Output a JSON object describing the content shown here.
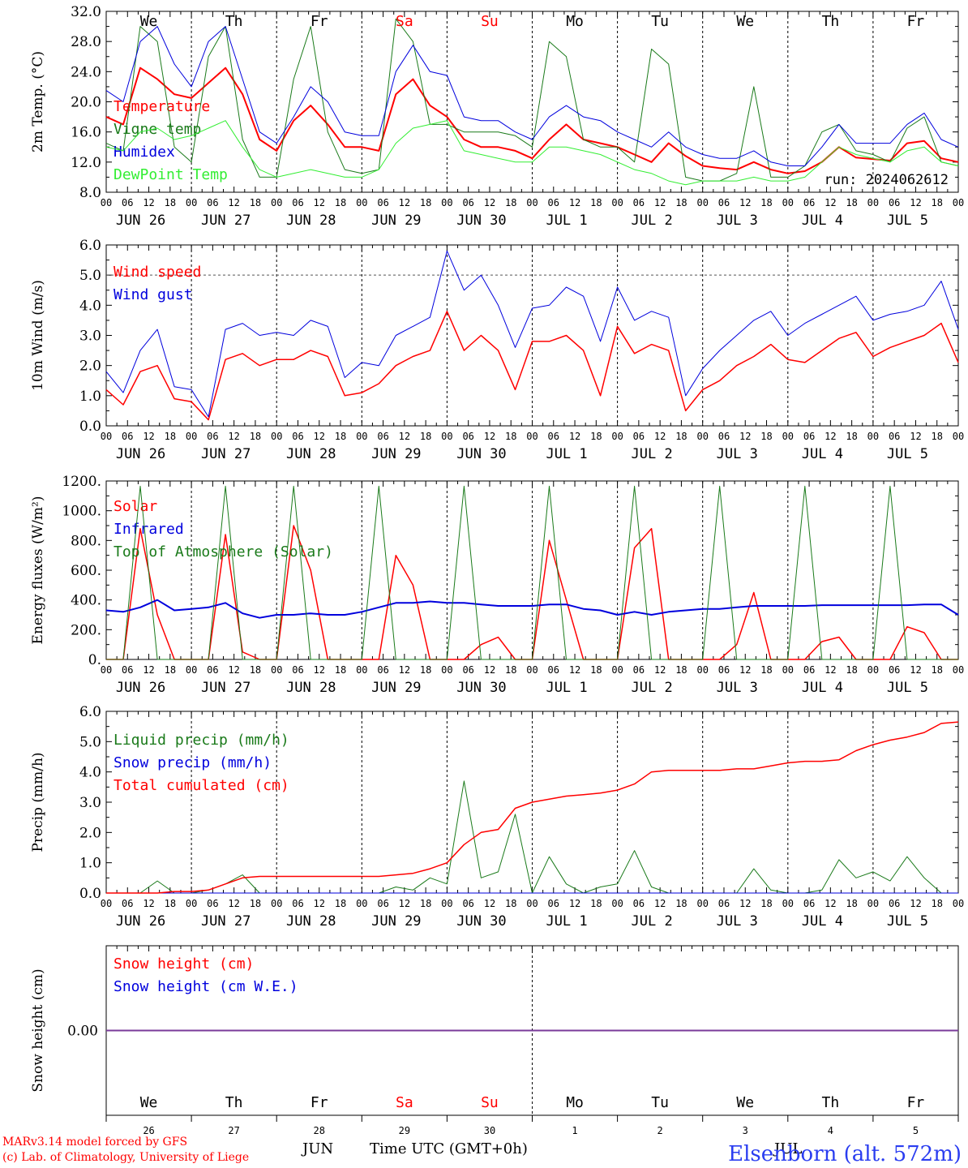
{
  "days": [
    {
      "dow": "We",
      "date": "JUN 26",
      "num": "26",
      "color": "#000000"
    },
    {
      "dow": "Th",
      "date": "JUN 27",
      "num": "27",
      "color": "#000000"
    },
    {
      "dow": "Fr",
      "date": "JUN 28",
      "num": "28",
      "color": "#000000"
    },
    {
      "dow": "Sa",
      "date": "JUN 29",
      "num": "29",
      "color": "#ff0000"
    },
    {
      "dow": "Su",
      "date": "JUN 30",
      "num": "30",
      "color": "#ff0000"
    },
    {
      "dow": "Mo",
      "date": "JUL  1",
      "num": "1",
      "color": "#000000"
    },
    {
      "dow": "Tu",
      "date": "JUL  2",
      "num": "2",
      "color": "#000000"
    },
    {
      "dow": "We",
      "date": "JUL  3",
      "num": "3",
      "color": "#000000"
    },
    {
      "dow": "Th",
      "date": "JUL  4",
      "num": "4",
      "color": "#000000"
    },
    {
      "dow": "Fr",
      "date": "JUL  5",
      "num": "5",
      "color": "#000000"
    }
  ],
  "hour_ticks": [
    "00",
    "06",
    "12",
    "18"
  ],
  "run_label": "run: 2024062612",
  "footer": {
    "credit_line1": "MARv3.14 model forced by GFS",
    "credit_line2": "(c) Lab. of Climatology, University of Liege",
    "month_left": "JUN",
    "month_right": "JUL",
    "xaxis_title": "Time UTC (GMT+0h)",
    "station": "Elsenborn (alt. 572m)"
  },
  "chart_data": [
    {
      "type": "line",
      "id": "temp",
      "ylabel": "2m Temp. (°C)",
      "ylim": [
        8,
        32
      ],
      "yticks": [
        "8.0",
        "12.0",
        "16.0",
        "20.0",
        "24.0",
        "28.0",
        "32.0"
      ],
      "x": "hours since Jun 26 00 UTC, every 6h from 0 to 240",
      "series": [
        {
          "name": "Temperature",
          "color": "#ff0000",
          "width": 2,
          "values": [
            18,
            17,
            24.5,
            23,
            21,
            20.5,
            22.5,
            24.5,
            21,
            15,
            13.5,
            17.5,
            19.5,
            17,
            14,
            14,
            13.5,
            21,
            23,
            19.5,
            18,
            15,
            14,
            14,
            13.5,
            12.5,
            15,
            17,
            15,
            14.5,
            14,
            13,
            12,
            14.5,
            12.8,
            11.5,
            11.2,
            11,
            12,
            11,
            10.5,
            10.8,
            12,
            14,
            12.6,
            12.4,
            12.2,
            14.5,
            14.8,
            12.5,
            12
          ]
        },
        {
          "name": "Vigne temp",
          "color": "#1a7a1a",
          "width": 1,
          "values": [
            14.5,
            13.5,
            30,
            28,
            14,
            12,
            26,
            30,
            15,
            10,
            10,
            23,
            30,
            16,
            11,
            10.5,
            11,
            31,
            28,
            17,
            17,
            16,
            16,
            16,
            15.5,
            14,
            28,
            26,
            15,
            14,
            14,
            12,
            27,
            25,
            10,
            9.5,
            9.5,
            10.5,
            22,
            10,
            10,
            11.5,
            16,
            17,
            13.5,
            13,
            12,
            16.5,
            18,
            12,
            11.5
          ]
        },
        {
          "name": "Humidex",
          "color": "#0000dd",
          "width": 1,
          "values": [
            21.5,
            20,
            28,
            30,
            25,
            22,
            28,
            30,
            23,
            16,
            14.5,
            18,
            22,
            20,
            16,
            15.5,
            15.5,
            24,
            27.5,
            24,
            23.5,
            18,
            17.5,
            17.5,
            16,
            15,
            18,
            19.5,
            18,
            17.5,
            16,
            15,
            14,
            16,
            14,
            13,
            12.5,
            12.5,
            13.5,
            12,
            11.5,
            11.5,
            14,
            17,
            14.5,
            14.5,
            14.5,
            17,
            18.5,
            15,
            14
          ]
        },
        {
          "name": "DewPoint Temp",
          "color": "#33ee33",
          "width": 1,
          "values": [
            14,
            13.5,
            16,
            16.5,
            15,
            15.5,
            16.5,
            17.5,
            14,
            11,
            10,
            10.5,
            11,
            10.5,
            10,
            10,
            11,
            14.5,
            16.5,
            17,
            17.5,
            13.5,
            13,
            12.5,
            12,
            12,
            14,
            14,
            13.5,
            13,
            12,
            11,
            10.5,
            9.5,
            9,
            9.5,
            9.5,
            9.5,
            10,
            9.5,
            9.5,
            10,
            12,
            14,
            13,
            12.5,
            12,
            13.5,
            14,
            12,
            11.5
          ]
        }
      ]
    },
    {
      "type": "line",
      "id": "wind",
      "ylabel": "10m Wind (m/s)",
      "ylim": [
        0,
        6
      ],
      "yticks": [
        "0.0",
        "1.0",
        "2.0",
        "3.0",
        "4.0",
        "5.0",
        "6.0"
      ],
      "hline": 5,
      "series": [
        {
          "name": "Wind speed",
          "color": "#ff0000",
          "width": 1.5,
          "values": [
            1.2,
            0.7,
            1.8,
            2,
            0.9,
            0.8,
            0.2,
            2.2,
            2.4,
            2,
            2.2,
            2.2,
            2.5,
            2.3,
            1,
            1.1,
            1.4,
            2,
            2.3,
            2.5,
            3.8,
            2.5,
            3,
            2.5,
            1.2,
            2.8,
            2.8,
            3,
            2.5,
            1,
            3.3,
            2.4,
            2.7,
            2.5,
            0.5,
            1.2,
            1.5,
            2,
            2.3,
            2.7,
            2.2,
            2.1,
            2.5,
            2.9,
            3.1,
            2.3,
            2.6,
            2.8,
            3,
            3.4,
            2.1
          ]
        },
        {
          "name": "Wind gust",
          "color": "#0000dd",
          "width": 1,
          "values": [
            1.8,
            1.1,
            2.5,
            3.2,
            1.3,
            1.2,
            0.3,
            3.2,
            3.4,
            3,
            3.1,
            3,
            3.5,
            3.3,
            1.6,
            2.1,
            2,
            3,
            3.3,
            3.6,
            5.8,
            4.5,
            5,
            4,
            2.6,
            3.9,
            4,
            4.6,
            4.3,
            2.8,
            4.6,
            3.5,
            3.8,
            3.6,
            1,
            1.9,
            2.5,
            3,
            3.5,
            3.8,
            3,
            3.4,
            3.7,
            4,
            4.3,
            3.5,
            3.7,
            3.8,
            4,
            4.8,
            3.2
          ]
        }
      ]
    },
    {
      "type": "line",
      "id": "energy",
      "ylabel": "Energy fluxes (W/m²)",
      "ylim": [
        0,
        1200
      ],
      "yticks": [
        "0.",
        "200.",
        "400.",
        "600.",
        "800.",
        "1000.",
        "1200."
      ],
      "series": [
        {
          "name": "Solar",
          "color": "#ff0000",
          "width": 1.5,
          "values": [
            0,
            0,
            880,
            300,
            0,
            0,
            0,
            840,
            50,
            0,
            0,
            900,
            600,
            0,
            0,
            0,
            0,
            700,
            500,
            0,
            0,
            0,
            100,
            150,
            0,
            0,
            800,
            400,
            0,
            0,
            0,
            750,
            880,
            0,
            0,
            0,
            0,
            100,
            450,
            0,
            0,
            0,
            120,
            150,
            0,
            0,
            0,
            220,
            180,
            0,
            0
          ]
        },
        {
          "name": "Infrared",
          "color": "#0000dd",
          "width": 2,
          "values": [
            330,
            320,
            350,
            400,
            330,
            340,
            350,
            380,
            310,
            280,
            300,
            300,
            310,
            300,
            300,
            320,
            350,
            380,
            380,
            390,
            380,
            380,
            370,
            360,
            360,
            360,
            370,
            370,
            340,
            330,
            300,
            320,
            300,
            320,
            330,
            340,
            340,
            350,
            360,
            360,
            360,
            360,
            365,
            365,
            365,
            365,
            365,
            365,
            370,
            370,
            300
          ]
        },
        {
          "name": "Top of Atmosphere (Solar)",
          "color": "#1a7a1a",
          "width": 1,
          "values": [
            0,
            0,
            1165,
            0,
            0,
            0,
            0,
            1165,
            0,
            0,
            0,
            1165,
            0,
            0,
            0,
            0,
            1165,
            0,
            0,
            0,
            0,
            1165,
            0,
            0,
            0,
            0,
            1165,
            0,
            0,
            0,
            0,
            1165,
            0,
            0,
            0,
            0,
            1165,
            0,
            0,
            0,
            0,
            1165,
            0,
            0,
            0,
            0,
            1165,
            0,
            0,
            0,
            0
          ]
        }
      ]
    },
    {
      "type": "line",
      "id": "precip",
      "ylabel": "Precip (mm/h)",
      "ylim": [
        0,
        6
      ],
      "yticks": [
        "0.0",
        "1.0",
        "2.0",
        "3.0",
        "4.0",
        "5.0",
        "6.0"
      ],
      "series": [
        {
          "name": "Liquid precip (mm/h)",
          "color": "#1a7a1a",
          "width": 1,
          "values": [
            0,
            0,
            0,
            0.4,
            0,
            0,
            0.1,
            0.3,
            0.6,
            0,
            0,
            0,
            0,
            0,
            0,
            0,
            0,
            0.2,
            0.1,
            0.5,
            0.3,
            3.7,
            0.5,
            0.7,
            2.6,
            0,
            1.2,
            0.3,
            0,
            0.2,
            0.3,
            1.4,
            0.2,
            0,
            0,
            0,
            0,
            0,
            0.8,
            0.1,
            0,
            0,
            0.1,
            1.1,
            0.5,
            0.7,
            0.4,
            1.2,
            0.5,
            0,
            0
          ]
        },
        {
          "name": "Snow precip (mm/h)",
          "color": "#0000dd",
          "width": 1,
          "values": [
            0,
            0,
            0,
            0,
            0,
            0,
            0,
            0,
            0,
            0,
            0,
            0,
            0,
            0,
            0,
            0,
            0,
            0,
            0,
            0,
            0,
            0,
            0,
            0,
            0,
            0,
            0,
            0,
            0,
            0,
            0,
            0,
            0,
            0,
            0,
            0,
            0,
            0,
            0,
            0,
            0,
            0,
            0,
            0,
            0,
            0,
            0,
            0,
            0,
            0,
            0
          ]
        },
        {
          "name": "Total cumulated (cm)",
          "color": "#ff0000",
          "width": 1.5,
          "values": [
            0,
            0,
            0,
            0,
            0.05,
            0.05,
            0.1,
            0.3,
            0.5,
            0.55,
            0.55,
            0.55,
            0.55,
            0.55,
            0.55,
            0.55,
            0.55,
            0.6,
            0.65,
            0.8,
            1,
            1.6,
            2,
            2.1,
            2.8,
            3,
            3.1,
            3.2,
            3.25,
            3.3,
            3.4,
            3.6,
            4,
            4.05,
            4.05,
            4.05,
            4.05,
            4.1,
            4.1,
            4.2,
            4.3,
            4.35,
            4.35,
            4.4,
            4.7,
            4.9,
            5.05,
            5.15,
            5.3,
            5.6,
            5.65
          ]
        }
      ]
    },
    {
      "type": "line",
      "id": "snow",
      "ylabel": "Snow height (cm)",
      "ylim": [
        -1,
        1
      ],
      "yticks": [
        "0.00"
      ],
      "series": [
        {
          "name": "Snow height (cm)",
          "color": "#ff0000",
          "width": 1,
          "values": [
            0,
            0
          ]
        },
        {
          "name": "Snow height (cm W.E.)",
          "color": "#0000dd",
          "width": 1,
          "values": [
            0,
            0
          ]
        }
      ]
    }
  ]
}
